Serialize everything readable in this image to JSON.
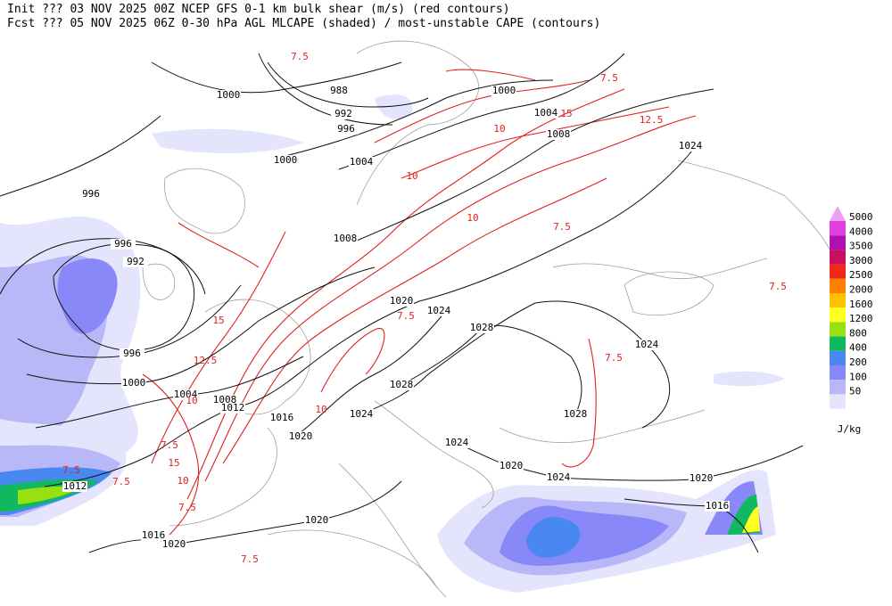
{
  "header": {
    "line1": "Init  ??? 03 NOV 2025 00Z  NCEP GFS 0-1 km bulk shear (m/s) (red contours)",
    "line2": "Fcst ??? 05 NOV 2025 06Z  0-30 hPa AGL MLCAPE (shaded) / most-unstable CAPE (contours)"
  },
  "legend": {
    "unit": "J/kg",
    "levels": [
      {
        "label": "5000",
        "color": "#e040e0"
      },
      {
        "label": "4000",
        "color": "#b010b0"
      },
      {
        "label": "3500",
        "color": "#c81060"
      },
      {
        "label": "3000",
        "color": "#f02818"
      },
      {
        "label": "2500",
        "color": "#ff8000"
      },
      {
        "label": "2000",
        "color": "#ffc000"
      },
      {
        "label": "1600",
        "color": "#ffff20"
      },
      {
        "label": "1200",
        "color": "#98e010"
      },
      {
        "label": "800",
        "color": "#10b860"
      },
      {
        "label": "400",
        "color": "#4888f0"
      },
      {
        "label": "200",
        "color": "#8888f8"
      },
      {
        "label": "100",
        "color": "#b8b8f8"
      },
      {
        "label": "50",
        "color": "#e4e4fc"
      }
    ],
    "top_color": "#f0a0f0"
  },
  "isobar_labels": [
    "1000",
    "988",
    "992",
    "996",
    "1000",
    "1004",
    "996",
    "1000",
    "1004",
    "1008",
    "1024",
    "996",
    "992",
    "1008",
    "1020",
    "1024",
    "1028",
    "1024",
    "996",
    "1000",
    "1004",
    "1008",
    "1012",
    "1016",
    "1020",
    "1028",
    "1024",
    "1024",
    "1028",
    "1020",
    "1024",
    "1020",
    "1016",
    "1012",
    "1020",
    "1016",
    "1020"
  ],
  "shear_labels": [
    "7.5",
    "7.5",
    "10",
    "12.5",
    "15",
    "10",
    "7.5",
    "10",
    "7.5",
    "15",
    "12.5",
    "10",
    "7.5",
    "7.5",
    "7.5",
    "10",
    "15",
    "7.5",
    "7.5",
    "7.5",
    "10",
    "7.5"
  ]
}
